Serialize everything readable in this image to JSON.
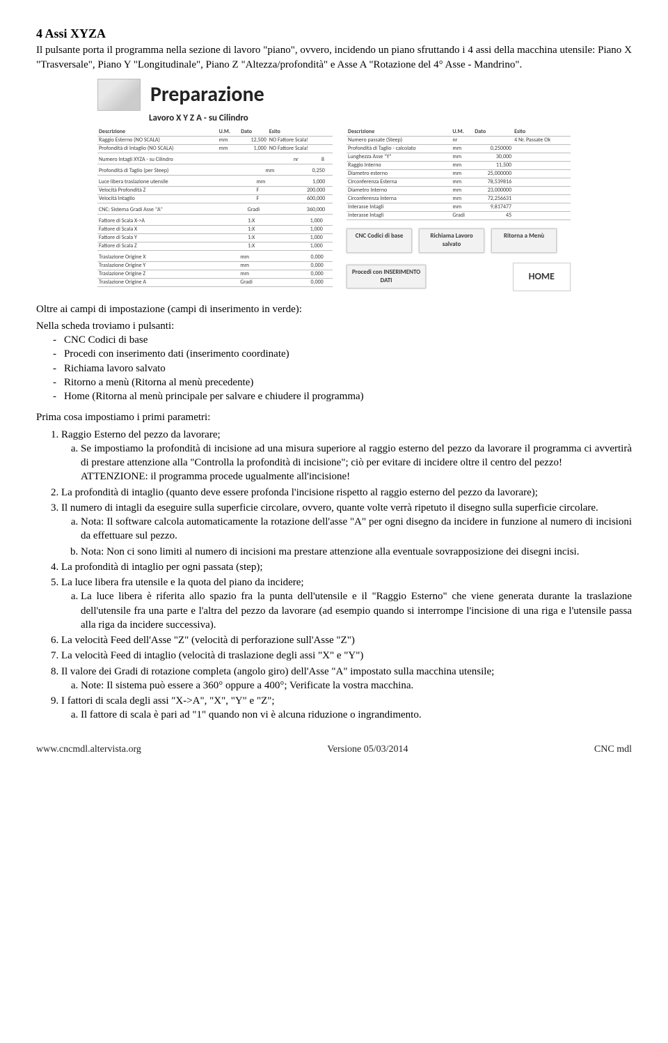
{
  "title": "4 Assi XYZA",
  "intro": "Il pulsante porta il programma nella sezione di lavoro \"piano\", ovvero, incidendo un piano sfruttando i 4 assi della macchina utensile: Piano X \"Trasversale\", Piano Y \"Longitudinale\", Piano Z \"Altezza/profondità\" e Asse A \"Rotazione del 4° Asse - Mandrino\".",
  "panel": {
    "title": "Preparazione",
    "subtitle": "Lavoro X Y Z A - su Cilindro",
    "left1": {
      "headers": [
        "Descrizione",
        "U.M.",
        "Dato",
        "Esito"
      ],
      "rows": [
        [
          "Raggio Esterno (NO SCALA)",
          "mm",
          "12,500",
          "NO Fattore Scala!"
        ],
        [
          "Profondità di Intaglio (NO SCALA)",
          "mm",
          "1,000",
          "NO Fattore Scala!"
        ]
      ]
    },
    "left2": {
      "rows": [
        [
          "Numero Intagli XYZA - su Cilindro",
          "nr",
          "8",
          ""
        ]
      ]
    },
    "left3": {
      "rows": [
        [
          "Profondità di Taglio (per Steep)",
          "mm",
          "0,250",
          ""
        ]
      ]
    },
    "left4": {
      "rows": [
        [
          "Luce libera traslazione utensile",
          "mm",
          "1,000",
          ""
        ],
        [
          "Velocità Profondità Z",
          "F",
          "200,000",
          ""
        ],
        [
          "Velocità Intaglio",
          "F",
          "600,000",
          ""
        ]
      ]
    },
    "left5": {
      "rows": [
        [
          "CNC: Sistema Gradi Asse \"A\"",
          "Gradi",
          "360,000",
          ""
        ]
      ]
    },
    "left6": {
      "rows": [
        [
          "Fattore di Scala X->A",
          "1:X",
          "1,000",
          ""
        ],
        [
          "Fattore di Scala X",
          "1:X",
          "1,000",
          ""
        ],
        [
          "Fattore di Scala Y",
          "1:X",
          "1,000",
          ""
        ],
        [
          "Fattore di Scala Z",
          "1:X",
          "1,000",
          ""
        ]
      ]
    },
    "left7": {
      "rows": [
        [
          "Traslazione Origine X",
          "mm",
          "0,000",
          ""
        ],
        [
          "Traslazione Origine Y",
          "mm",
          "0,000",
          ""
        ],
        [
          "Traslazione Origine Z",
          "mm",
          "0,000",
          ""
        ],
        [
          "Traslazione Origine A",
          "Gradi",
          "0,000",
          ""
        ]
      ]
    },
    "right1": {
      "headers": [
        "Descrizione",
        "U.M.",
        "Dato",
        "Esito"
      ],
      "rows": [
        [
          "Numero passate (Steep)",
          "nr",
          "",
          "4 Nr. Passate Ok"
        ],
        [
          "Profondità di Taglio - calcolato",
          "mm",
          "0,250000",
          ""
        ],
        [
          "Lunghezza Asse \"Y\"",
          "mm",
          "30,000",
          ""
        ],
        [
          "Raggio Interno",
          "mm",
          "11,500",
          ""
        ],
        [
          "Diametro esterno",
          "mm",
          "25,000000",
          ""
        ],
        [
          "Circonferenza Esterna",
          "mm",
          "78,539816",
          ""
        ],
        [
          "Diametro Interno",
          "mm",
          "23,000000",
          ""
        ],
        [
          "Circonferenza Interna",
          "mm",
          "72,256631",
          ""
        ],
        [
          "Interasse Intagli",
          "mm",
          "9,817477",
          ""
        ],
        [
          "Interasse Intagli",
          "Gradi",
          "45",
          ""
        ]
      ]
    },
    "btn_cnc": "CNC\nCodici di base",
    "btn_richiama": "Richiama\nLavoro salvato",
    "btn_ritorna": "Ritorna a Menù",
    "btn_procedi": "Procedi con\nINSERIMENTO DATI",
    "btn_home": "HOME"
  },
  "after_panel_intro": "Oltre ai campi di impostazione (campi di inserimento in verde):",
  "after_panel_line": "Nella scheda troviamo i pulsanti:",
  "dashes": [
    "CNC Codici di base",
    "Procedi con inserimento dati (inserimento coordinate)",
    "Richiama lavoro salvato",
    "Ritorno a menù (Ritorna al menù precedente)",
    "Home (Ritorna al menù principale per salvare e chiudere il programma)"
  ],
  "params_intro": "Prima cosa impostiamo i primi parametri:",
  "n1": "Raggio Esterno del pezzo da lavorare;",
  "n1a": "Se impostiamo la profondità di incisione ad una misura superiore al raggio esterno del pezzo da lavorare il programma ci avvertirà di prestare attenzione alla \"Controlla la profondità di incisione\"; ciò per evitare di incidere oltre il centro del pezzo!",
  "n1a_att": "ATTENZIONE: il programma procede ugualmente all'incisione!",
  "n2": "La profondità di intaglio (quanto deve essere profonda l'incisione rispetto al raggio esterno del pezzo da lavorare);",
  "n3": "Il numero di intagli da eseguire sulla superficie circolare, ovvero, quante volte verrà ripetuto il disegno sulla superficie circolare.",
  "n3a": "Nota: Il software calcola automaticamente la rotazione dell'asse \"A\" per ogni disegno da incidere in funzione al numero di incisioni da effettuare sul pezzo.",
  "n3b": "Nota: Non ci sono limiti al numero di incisioni ma prestare attenzione alla eventuale sovrapposizione dei disegni incisi.",
  "n4": "La profondità di intaglio per ogni passata (step);",
  "n5": "La luce libera fra utensile e la quota del piano da incidere;",
  "n5a": "La luce libera è riferita allo spazio fra la punta dell'utensile e il \"Raggio Esterno\" che viene generata durante la traslazione dell'utensile fra una parte e l'altra del pezzo da lavorare (ad esempio quando si interrompe l'incisione di una riga e l'utensile passa alla riga da incidere successiva).",
  "n6": "La velocità Feed dell'Asse \"Z\" (velocità di perforazione sull'Asse \"Z\")",
  "n7": "La velocità Feed di intaglio (velocità di traslazione degli assi \"X\" e \"Y\")",
  "n8": "Il valore dei Gradi di rotazione completa (angolo giro) dell'Asse \"A\" impostato sulla macchina utensile;",
  "n8a": "Note: Il sistema può essere a 360° oppure a 400°; Verificate la vostra macchina.",
  "n9": "I fattori di scala degli assi \"X->A\", \"X\", \"Y\" e \"Z\";",
  "n9a": "Il fattore di scala è pari ad \"1\" quando non vi è alcuna riduzione o ingrandimento.",
  "footer_left": "www.cncmdl.altervista.org",
  "footer_center": "Versione 05/03/2014",
  "footer_right": "CNC mdl"
}
